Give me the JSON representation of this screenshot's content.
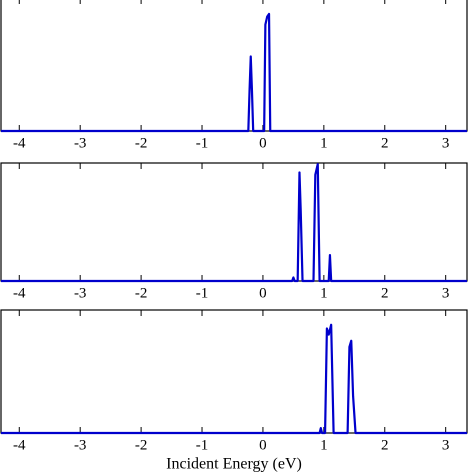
{
  "chart_data": [
    {
      "type": "line",
      "xlim": [
        -4.3,
        3.35
      ],
      "ylim": [
        0,
        1
      ],
      "xticks": [
        -4,
        -3,
        -2,
        -1,
        0,
        1,
        2,
        3
      ],
      "x": [
        -4.3,
        -0.24,
        -0.22,
        -0.2,
        -0.18,
        -0.16,
        0.02,
        0.04,
        0.07,
        0.1,
        0.12,
        3.35
      ],
      "series": [
        {
          "color": "#0000cc",
          "values": [
            0,
            0,
            0.3,
            0.56,
            0.3,
            0,
            0,
            0.8,
            0.86,
            0.88,
            0,
            0
          ]
        }
      ]
    },
    {
      "type": "line",
      "xlim": [
        -4.3,
        3.35
      ],
      "ylim": [
        0,
        1
      ],
      "xticks": [
        -4,
        -3,
        -2,
        -1,
        0,
        1,
        2,
        3
      ],
      "x": [
        -4.3,
        0.48,
        0.5,
        0.52,
        0.57,
        0.6,
        0.62,
        0.65,
        0.83,
        0.86,
        0.9,
        0.93,
        1.08,
        1.1,
        1.12,
        3.35
      ],
      "series": [
        {
          "color": "#0000cc",
          "values": [
            0,
            0,
            0.03,
            0,
            0,
            0.92,
            0.6,
            0,
            0,
            0.9,
            0.99,
            0,
            0,
            0.22,
            0,
            0
          ]
        }
      ]
    },
    {
      "type": "line",
      "xlim": [
        -4.3,
        3.35
      ],
      "ylim": [
        0,
        1
      ],
      "xticks": [
        -4,
        -3,
        -2,
        -1,
        0,
        1,
        2,
        3
      ],
      "xlabel": "Incident Energy (eV)",
      "x": [
        -4.3,
        0.93,
        0.95,
        0.97,
        1.02,
        1.05,
        1.08,
        1.12,
        1.16,
        1.39,
        1.42,
        1.45,
        1.48,
        1.52,
        3.35
      ],
      "series": [
        {
          "color": "#0000cc",
          "values": [
            0,
            0,
            0.04,
            0,
            0,
            0.85,
            0.8,
            0.88,
            0,
            0,
            0.7,
            0.75,
            0.3,
            0,
            0
          ]
        }
      ]
    }
  ]
}
